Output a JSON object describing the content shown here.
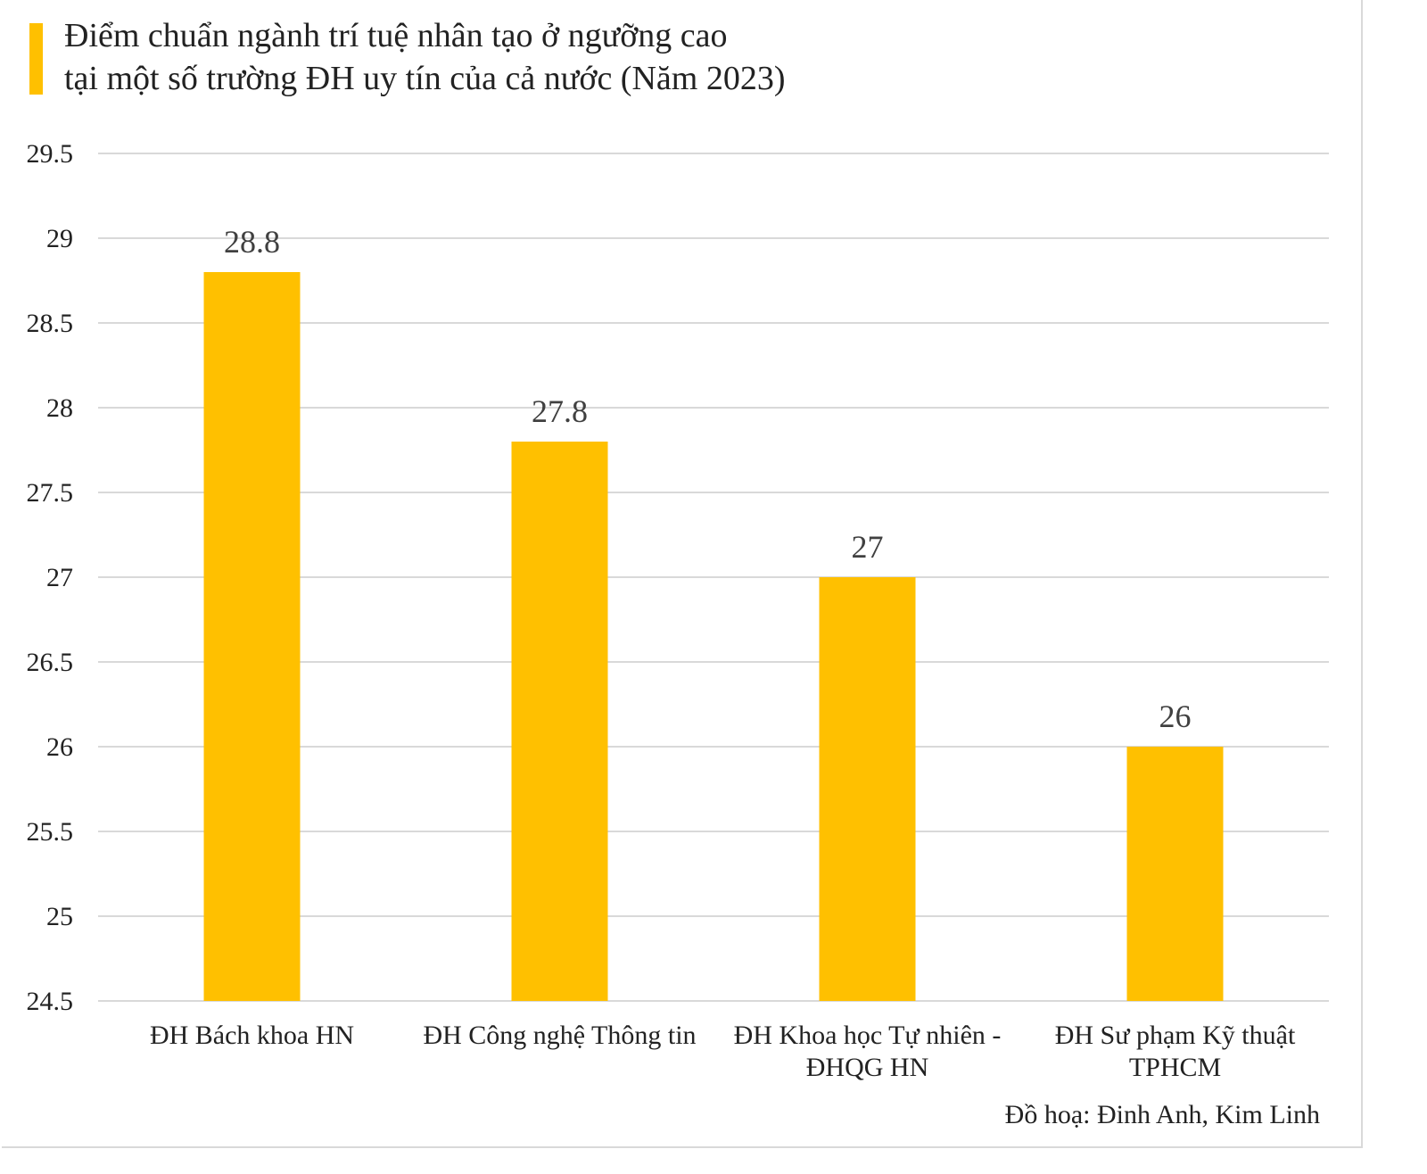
{
  "title_lines": [
    "Điểm chuẩn ngành trí tuệ nhân tạo ở ngưỡng cao",
    "tại một số trường ĐH uy tín của cả nước (Năm 2023)"
  ],
  "credit": "Đồ hoạ: Đinh Anh, Kim Linh",
  "colors": {
    "bar": "#FFC000",
    "accent": "#FFC000",
    "grid": "#d9d9d9",
    "text": "#222222"
  },
  "chart_data": {
    "type": "bar",
    "title": "Điểm chuẩn ngành trí tuệ nhân tạo ở ngưỡng cao tại một số trường ĐH uy tín của cả nước (Năm 2023)",
    "xlabel": "",
    "ylabel": "",
    "categories": [
      [
        "ĐH Bách khoa HN"
      ],
      [
        "ĐH Công nghệ Thông tin"
      ],
      [
        "ĐH Khoa học Tự nhiên -",
        "ĐHQG HN"
      ],
      [
        "ĐH Sư phạm Kỹ thuật",
        "TPHCM"
      ]
    ],
    "values": [
      28.8,
      27.8,
      27,
      26
    ],
    "value_labels": [
      "28.8",
      "27.8",
      "27",
      "26"
    ],
    "ylim": [
      24.5,
      29.5
    ],
    "yticks": [
      "24.5",
      "25",
      "25.5",
      "26",
      "26.5",
      "27",
      "27.5",
      "28",
      "28.5",
      "29",
      "29.5"
    ],
    "grid": true,
    "legend": "none"
  }
}
